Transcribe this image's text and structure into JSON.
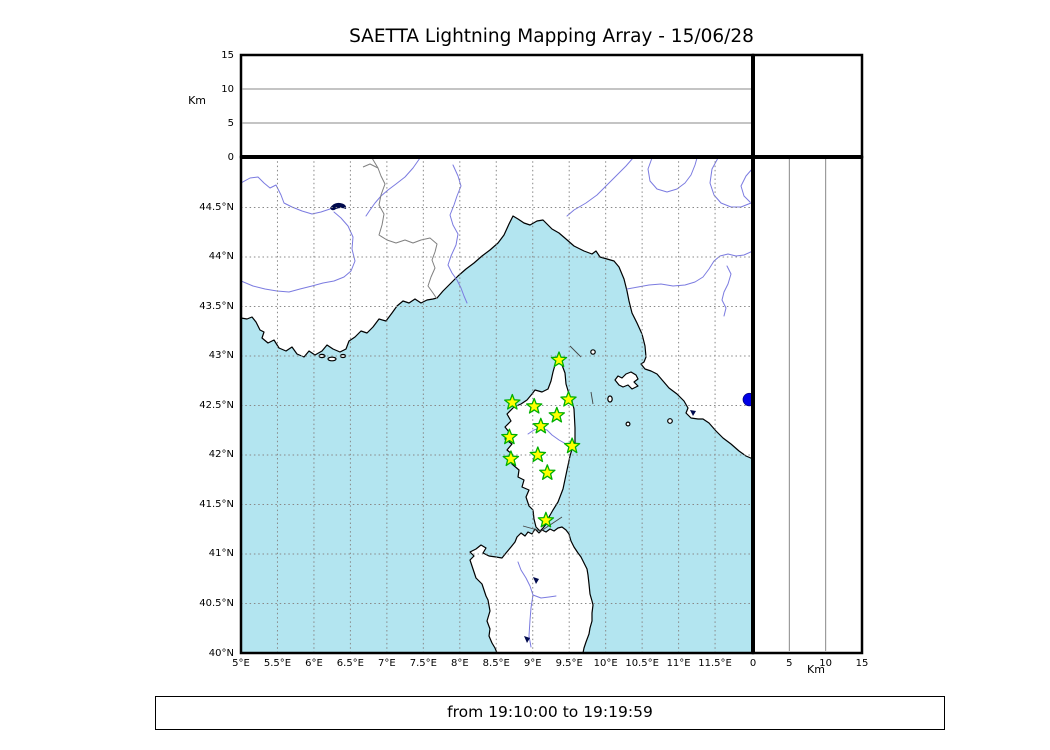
{
  "title": "SAETTA Lightning Mapping Array - 15/06/28",
  "footer": "from 19:10:00 to 19:19:59",
  "colors": {
    "sea": "#b3e5f0",
    "land": "#ffffff",
    "coast": "#000000",
    "grid": "#888888",
    "river": "#7b7be0",
    "borderline": "#808080",
    "star_fill": "#ffff00",
    "star_edge": "#00b000",
    "detection": "#0000e6",
    "darkwater": "#000a4d"
  },
  "chart_data": {
    "type": "scatter",
    "title": "SAETTA Lightning Mapping Array - 15/06/28",
    "time_window": "from 19:10:00 to 19:19:59",
    "altitude_panel": {
      "label": "Km",
      "range": [
        0,
        15
      ],
      "ticks": [
        {
          "v": 0,
          "label": "0"
        },
        {
          "v": 5,
          "label": "5"
        },
        {
          "v": 10,
          "label": "10"
        },
        {
          "v": 15,
          "label": "15"
        }
      ],
      "gridlines": [
        5,
        10
      ],
      "points": []
    },
    "right_panel": {
      "label": "Km",
      "range": [
        0,
        15
      ],
      "ticks": [
        {
          "v": 0,
          "label": "0"
        },
        {
          "v": 5,
          "label": "5"
        },
        {
          "v": 10,
          "label": "10"
        },
        {
          "v": 15,
          "label": "15"
        }
      ],
      "gridlines": [
        5,
        10
      ],
      "points": []
    },
    "map": {
      "lon_range": [
        5,
        12.02
      ],
      "lat_range": [
        40,
        45.01
      ],
      "grid": true,
      "lon_ticks": [
        {
          "v": 5,
          "label": "5°E"
        },
        {
          "v": 5.5,
          "label": "5.5°E"
        },
        {
          "v": 6,
          "label": "6°E"
        },
        {
          "v": 6.5,
          "label": "6.5°E"
        },
        {
          "v": 7,
          "label": "7°E"
        },
        {
          "v": 7.5,
          "label": "7.5°E"
        },
        {
          "v": 8,
          "label": "8°E"
        },
        {
          "v": 8.5,
          "label": "8.5°E"
        },
        {
          "v": 9,
          "label": "9°E"
        },
        {
          "v": 9.5,
          "label": "9.5°E"
        },
        {
          "v": 10,
          "label": "10°E"
        },
        {
          "v": 10.5,
          "label": "10.5°E"
        },
        {
          "v": 11,
          "label": "11°E"
        },
        {
          "v": 11.5,
          "label": "11.5°E"
        }
      ],
      "lat_ticks": [
        {
          "v": 44.5,
          "label": "44.5°N"
        },
        {
          "v": 44,
          "label": "44°N"
        },
        {
          "v": 43.5,
          "label": "43.5°N"
        },
        {
          "v": 43,
          "label": "43°N"
        },
        {
          "v": 42.5,
          "label": "42.5°N"
        },
        {
          "v": 42,
          "label": "42°N"
        },
        {
          "v": 41.5,
          "label": "41.5°N"
        },
        {
          "v": 41,
          "label": "41°N"
        },
        {
          "v": 40.5,
          "label": "40.5°N"
        },
        {
          "v": 40,
          "label": "40°N"
        }
      ],
      "stations": [
        {
          "lon": 9.36,
          "lat": 42.96
        },
        {
          "lon": 8.72,
          "lat": 42.53
        },
        {
          "lon": 9.02,
          "lat": 42.49
        },
        {
          "lon": 9.49,
          "lat": 42.56
        },
        {
          "lon": 9.33,
          "lat": 42.4
        },
        {
          "lon": 9.11,
          "lat": 42.29
        },
        {
          "lon": 8.68,
          "lat": 42.18
        },
        {
          "lon": 9.54,
          "lat": 42.09
        },
        {
          "lon": 8.7,
          "lat": 41.96
        },
        {
          "lon": 9.07,
          "lat": 42.0
        },
        {
          "lon": 9.2,
          "lat": 41.82
        },
        {
          "lon": 9.18,
          "lat": 41.34
        }
      ],
      "detections": [
        {
          "lon": 11.97,
          "lat": 42.56
        }
      ]
    }
  }
}
